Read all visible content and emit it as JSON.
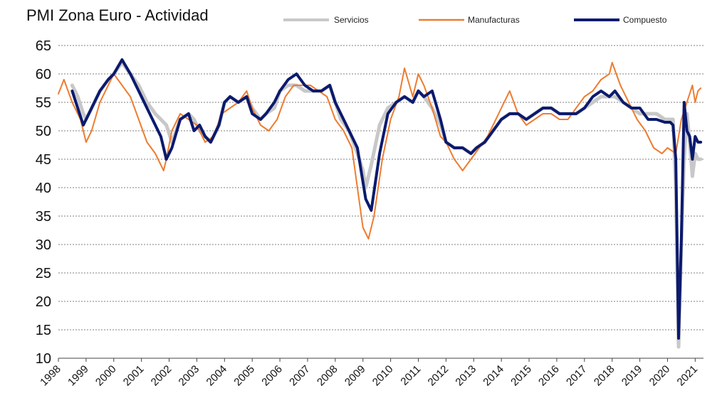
{
  "chart_data": {
    "type": "line",
    "title": "PMI Zona Euro - Actividad",
    "xlabel": "",
    "ylabel": "",
    "ylim": [
      10,
      65
    ],
    "xlim": [
      1998,
      2021.3
    ],
    "y_ticks": [
      "10",
      "15",
      "20",
      "25",
      "30",
      "35",
      "40",
      "45",
      "50",
      "55",
      "60",
      "65"
    ],
    "x_ticks": [
      "1998",
      "1999",
      "2000",
      "2001",
      "2002",
      "2003",
      "2004",
      "2005",
      "2006",
      "2007",
      "2008",
      "2009",
      "2010",
      "2011",
      "2012",
      "2013",
      "2014",
      "2015",
      "2016",
      "2017",
      "2018",
      "2019",
      "2020",
      "2021"
    ],
    "grid": true,
    "legend_position": "top",
    "colors": {
      "Servicios": "#c8c8c8",
      "Manufacturas": "#ed7d31",
      "Compuesto": "#0b1a6e"
    },
    "series": [
      {
        "name": "Servicios",
        "x": [
          1998.5,
          1998.7,
          1998.9,
          1999.0,
          1999.2,
          1999.5,
          1999.8,
          2000.0,
          2000.3,
          2000.6,
          2000.9,
          2001.2,
          2001.5,
          2001.7,
          2001.9,
          2002.1,
          2002.4,
          2002.7,
          2002.9,
          2003.1,
          2003.3,
          2003.5,
          2003.8,
          2004.0,
          2004.2,
          2004.5,
          2004.8,
          2005.0,
          2005.3,
          2005.5,
          2005.8,
          2006.0,
          2006.3,
          2006.6,
          2006.9,
          2007.2,
          2007.5,
          2007.8,
          2008.0,
          2008.2,
          2008.5,
          2008.8,
          2009.0,
          2009.1,
          2009.3,
          2009.6,
          2009.9,
          2010.2,
          2010.5,
          2010.8,
          2011.0,
          2011.2,
          2011.5,
          2011.8,
          2012.0,
          2012.3,
          2012.6,
          2012.9,
          2013.1,
          2013.4,
          2013.7,
          2014.0,
          2014.3,
          2014.6,
          2014.9,
          2015.2,
          2015.5,
          2015.8,
          2016.1,
          2016.4,
          2016.7,
          2017.0,
          2017.3,
          2017.6,
          2017.9,
          2018.1,
          2018.4,
          2018.7,
          2019.0,
          2019.3,
          2019.6,
          2019.9,
          2020.1,
          2020.2,
          2020.3,
          2020.4,
          2020.5,
          2020.6,
          2020.7,
          2020.8,
          2020.9,
          2021.0,
          2021.1,
          2021.2
        ],
        "values": [
          58,
          56,
          53,
          52,
          54,
          57,
          59,
          60,
          62,
          60,
          58,
          55,
          53,
          52,
          51,
          48,
          52,
          53,
          52,
          50,
          49,
          48,
          51,
          55,
          56,
          55,
          56,
          54,
          52,
          53,
          54,
          57,
          58,
          58,
          57,
          57,
          57,
          58,
          55,
          52,
          50,
          46,
          43,
          40,
          44,
          51,
          54,
          55,
          56,
          55,
          57,
          56,
          54,
          51,
          48,
          47,
          47,
          46,
          47,
          48,
          50,
          52,
          53,
          53,
          52,
          53,
          54,
          54,
          53,
          53,
          53,
          54,
          55,
          56,
          56,
          56,
          55,
          54,
          53,
          53,
          53,
          52,
          52,
          52,
          40,
          12,
          30,
          45,
          53,
          48,
          42,
          46,
          45,
          45
        ]
      },
      {
        "name": "Manufacturas",
        "x": [
          1998.0,
          1998.2,
          1998.5,
          1998.8,
          1999.0,
          1999.2,
          1999.5,
          1999.8,
          2000.0,
          2000.3,
          2000.6,
          2000.9,
          2001.2,
          2001.5,
          2001.8,
          2001.9,
          2002.1,
          2002.4,
          2002.7,
          2003.0,
          2003.3,
          2003.6,
          2003.9,
          2004.2,
          2004.5,
          2004.8,
          2005.0,
          2005.3,
          2005.6,
          2005.9,
          2006.2,
          2006.5,
          2006.8,
          2007.1,
          2007.4,
          2007.7,
          2008.0,
          2008.3,
          2008.6,
          2008.8,
          2009.0,
          2009.2,
          2009.4,
          2009.7,
          2010.0,
          2010.3,
          2010.5,
          2010.8,
          2011.0,
          2011.2,
          2011.5,
          2011.8,
          2012.0,
          2012.3,
          2012.6,
          2012.9,
          2013.2,
          2013.5,
          2013.8,
          2014.0,
          2014.3,
          2014.6,
          2014.9,
          2015.2,
          2015.5,
          2015.8,
          2016.1,
          2016.4,
          2016.7,
          2017.0,
          2017.3,
          2017.6,
          2017.9,
          2018.0,
          2018.3,
          2018.6,
          2018.9,
          2019.2,
          2019.5,
          2019.8,
          2020.0,
          2020.3,
          2020.5,
          2020.7,
          2020.9,
          2021.0,
          2021.1,
          2021.2
        ],
        "values": [
          56.5,
          59,
          55,
          52,
          48,
          50,
          55,
          58,
          60,
          58,
          56,
          52,
          48,
          46,
          43,
          45,
          50,
          53,
          52,
          51,
          48,
          49,
          53,
          54,
          55,
          57,
          54,
          51,
          50,
          52,
          56,
          58,
          58,
          58,
          57,
          56,
          52,
          50,
          47,
          40,
          33,
          31,
          35,
          45,
          52,
          56,
          61,
          56,
          60,
          58,
          54,
          49,
          48,
          45,
          43,
          45,
          47,
          49,
          52,
          54,
          57,
          53,
          51,
          52,
          53,
          53,
          52,
          52,
          54,
          56,
          57,
          59,
          60,
          62,
          58,
          55,
          52,
          50,
          47,
          46,
          47,
          46,
          52,
          55,
          58,
          55,
          57,
          57.5
        ]
      },
      {
        "name": "Compuesto",
        "x": [
          1998.5,
          1998.7,
          1998.9,
          1999.0,
          1999.2,
          1999.5,
          1999.8,
          2000.0,
          2000.3,
          2000.6,
          2000.9,
          2001.2,
          2001.5,
          2001.7,
          2001.9,
          2002.1,
          2002.4,
          2002.7,
          2002.9,
          2003.1,
          2003.3,
          2003.5,
          2003.8,
          2004.0,
          2004.2,
          2004.5,
          2004.8,
          2005.0,
          2005.3,
          2005.5,
          2005.8,
          2006.0,
          2006.3,
          2006.6,
          2006.9,
          2007.2,
          2007.5,
          2007.8,
          2008.0,
          2008.2,
          2008.5,
          2008.8,
          2009.0,
          2009.1,
          2009.3,
          2009.6,
          2009.9,
          2010.2,
          2010.5,
          2010.8,
          2011.0,
          2011.2,
          2011.5,
          2011.8,
          2012.0,
          2012.3,
          2012.6,
          2012.9,
          2013.1,
          2013.4,
          2013.7,
          2014.0,
          2014.3,
          2014.6,
          2014.9,
          2015.2,
          2015.5,
          2015.8,
          2016.1,
          2016.4,
          2016.7,
          2017.0,
          2017.3,
          2017.6,
          2017.9,
          2018.1,
          2018.4,
          2018.7,
          2019.0,
          2019.3,
          2019.6,
          2019.9,
          2020.1,
          2020.2,
          2020.3,
          2020.4,
          2020.5,
          2020.6,
          2020.7,
          2020.8,
          2020.9,
          2021.0,
          2021.1,
          2021.2
        ],
        "values": [
          57,
          54,
          51,
          52,
          54,
          57,
          59,
          60,
          62.5,
          60,
          57,
          54,
          51,
          49,
          45,
          47,
          52,
          53,
          50,
          51,
          49,
          48,
          51,
          55,
          56,
          55,
          56,
          53,
          52,
          53,
          55,
          57,
          59,
          60,
          58,
          57,
          57,
          58,
          55,
          53,
          50,
          47,
          41,
          38,
          36,
          46,
          53,
          55,
          56,
          55,
          57,
          56,
          57,
          52,
          48,
          47,
          47,
          46,
          47,
          48,
          50,
          52,
          53,
          53,
          52,
          53,
          54,
          54,
          53,
          53,
          53,
          54,
          56,
          57,
          56,
          57,
          55,
          54,
          54,
          52,
          52,
          51.5,
          51.5,
          51,
          45,
          13.5,
          31,
          55,
          50,
          49,
          45,
          49,
          48,
          48
        ]
      }
    ]
  }
}
